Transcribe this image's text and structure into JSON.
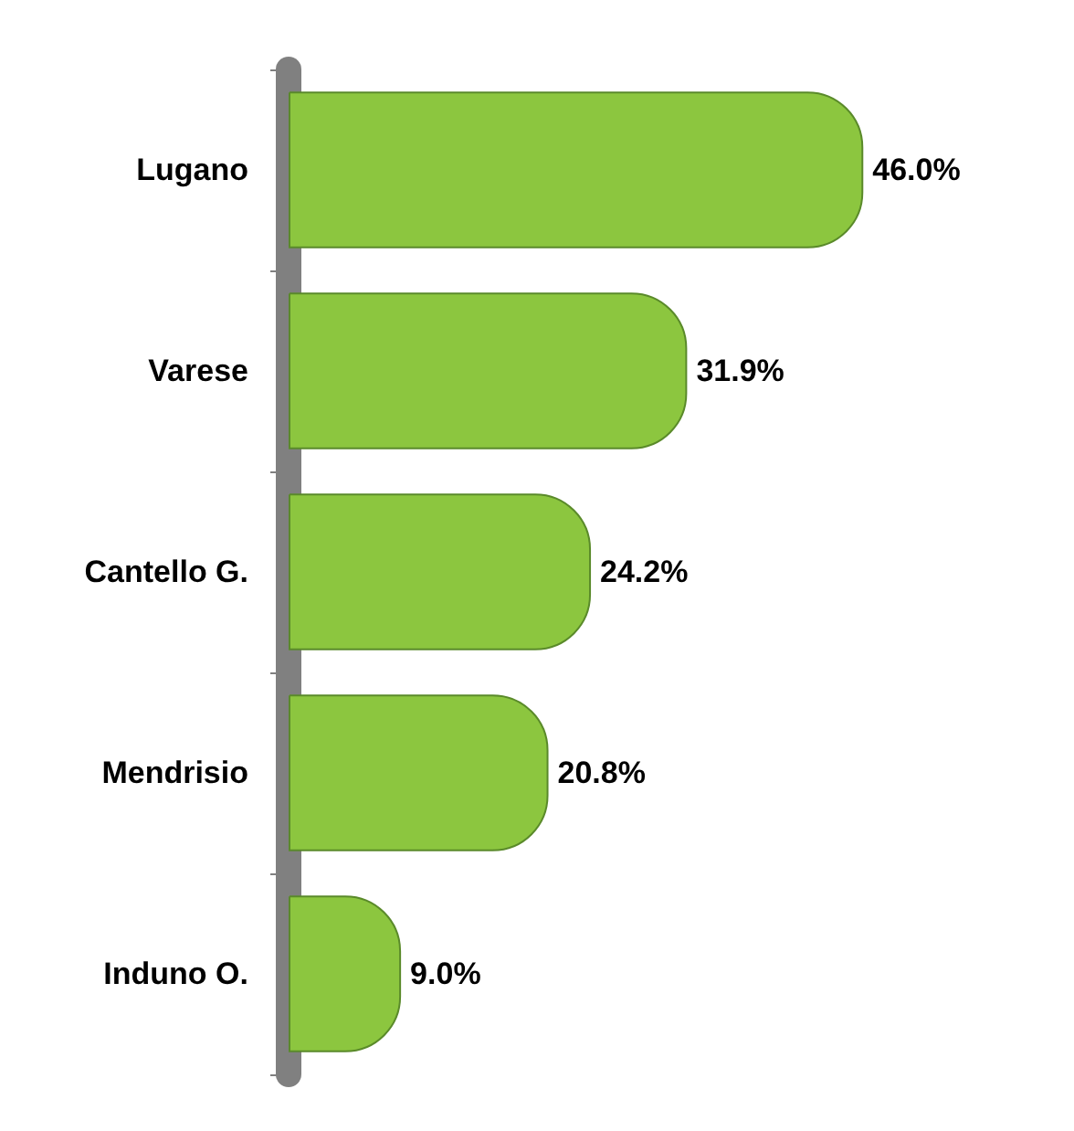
{
  "chart_data": {
    "type": "bar",
    "orientation": "horizontal",
    "categories": [
      "Lugano",
      "Varese",
      "Cantello G.",
      "Mendrisio",
      "Induno O."
    ],
    "values": [
      46.0,
      31.9,
      24.2,
      20.8,
      9.0
    ],
    "value_labels": [
      "46.0%",
      "31.9%",
      "24.2%",
      "20.8%",
      "9.0%"
    ],
    "color": "#8cc63f"
  }
}
